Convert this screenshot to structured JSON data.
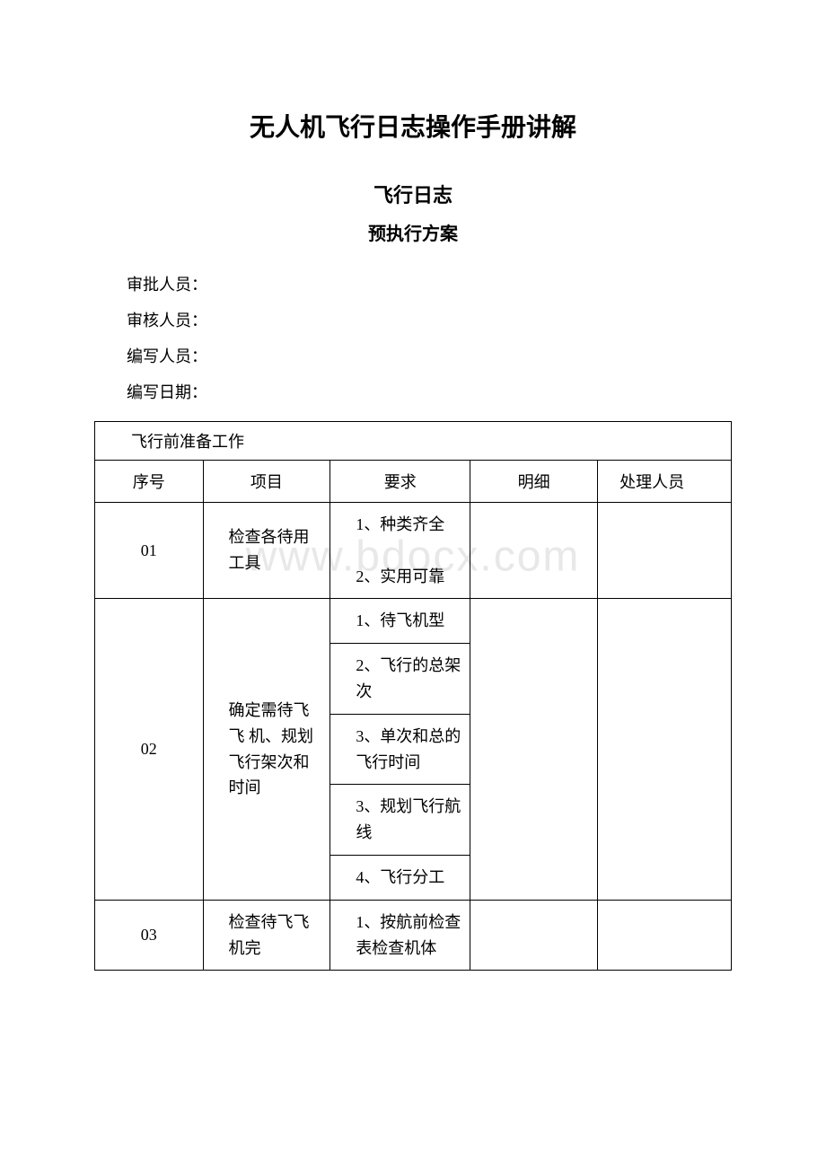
{
  "watermark": "www.bdocx.com",
  "title": "无人机飞行日志操作手册讲解",
  "subtitle1": "飞行日志",
  "subtitle2": "预执行方案",
  "meta": {
    "approver": "审批人员：",
    "reviewer": "审核人员：",
    "author": "编写人员：",
    "date": "编写日期："
  },
  "table": {
    "section_title": "飞行前准备工作",
    "headers": {
      "seq": "序号",
      "item": "项目",
      "req": "要求",
      "detail": "明细",
      "handler": "处理人员"
    },
    "rows": [
      {
        "seq": "01",
        "item": "检查各待用工具",
        "reqs": [
          "1、种类齐全",
          "2、实用可靠"
        ],
        "detail": "",
        "handler": ""
      },
      {
        "seq": "02",
        "item": "确定需待飞飞 机、规划飞行架次和时间",
        "reqs": [
          "1、待飞机型",
          "2、飞行的总架次",
          "3、单次和总的飞行时间",
          "3、规划飞行航线",
          "4、飞行分工"
        ],
        "detail": "",
        "handler": ""
      },
      {
        "seq": "03",
        "item": "检查待飞飞机完",
        "reqs": [
          "1、按航前检查表检查机体"
        ],
        "detail": "",
        "handler": ""
      }
    ]
  },
  "style": {
    "background_color": "#ffffff",
    "text_color": "#000000",
    "border_color": "#000000",
    "watermark_color": "#e8e8e8",
    "title_fontsize": 28,
    "subtitle_fontsize": 22,
    "body_fontsize": 18
  }
}
